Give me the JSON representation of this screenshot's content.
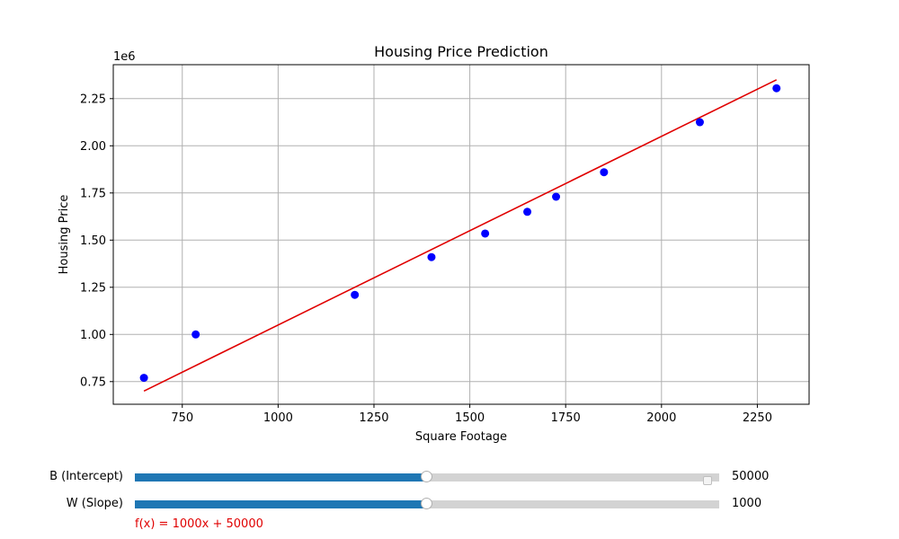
{
  "chart_data": {
    "type": "scatter",
    "title": "Housing Price Prediction",
    "xlabel": "Square Footage",
    "ylabel": "Housing Price",
    "y_offset_label": "1e6",
    "xlim": [
      570,
      2385
    ],
    "ylim": [
      630000,
      2430000
    ],
    "x_ticks": [
      750,
      1000,
      1250,
      1500,
      1750,
      2000,
      2250
    ],
    "x_tick_labels": [
      "750",
      "1000",
      "1250",
      "1500",
      "1750",
      "2000",
      "2250"
    ],
    "y_ticks": [
      750000,
      1000000,
      1250000,
      1500000,
      1750000,
      2000000,
      2250000
    ],
    "y_tick_labels": [
      "0.75",
      "1.00",
      "1.25",
      "1.50",
      "1.75",
      "2.00",
      "2.25"
    ],
    "grid": true,
    "points": {
      "color": "#0000ff",
      "x": [
        650,
        785,
        1200,
        1400,
        1540,
        1650,
        1725,
        1850,
        2100,
        2300
      ],
      "y": [
        770000,
        1000000,
        1210000,
        1410000,
        1535000,
        1650000,
        1730000,
        1860000,
        2125000,
        2305000
      ]
    },
    "fit_line": {
      "color": "#e00000",
      "x": [
        650,
        2300
      ],
      "y": [
        700000,
        2350000
      ]
    }
  },
  "sliders": [
    {
      "label": "B (Intercept)",
      "value": "50000",
      "position": 0.5
    },
    {
      "label": "W (Slope)",
      "value": "1000",
      "position": 0.5
    }
  ],
  "formula": "f(x) = 1000x + 50000"
}
